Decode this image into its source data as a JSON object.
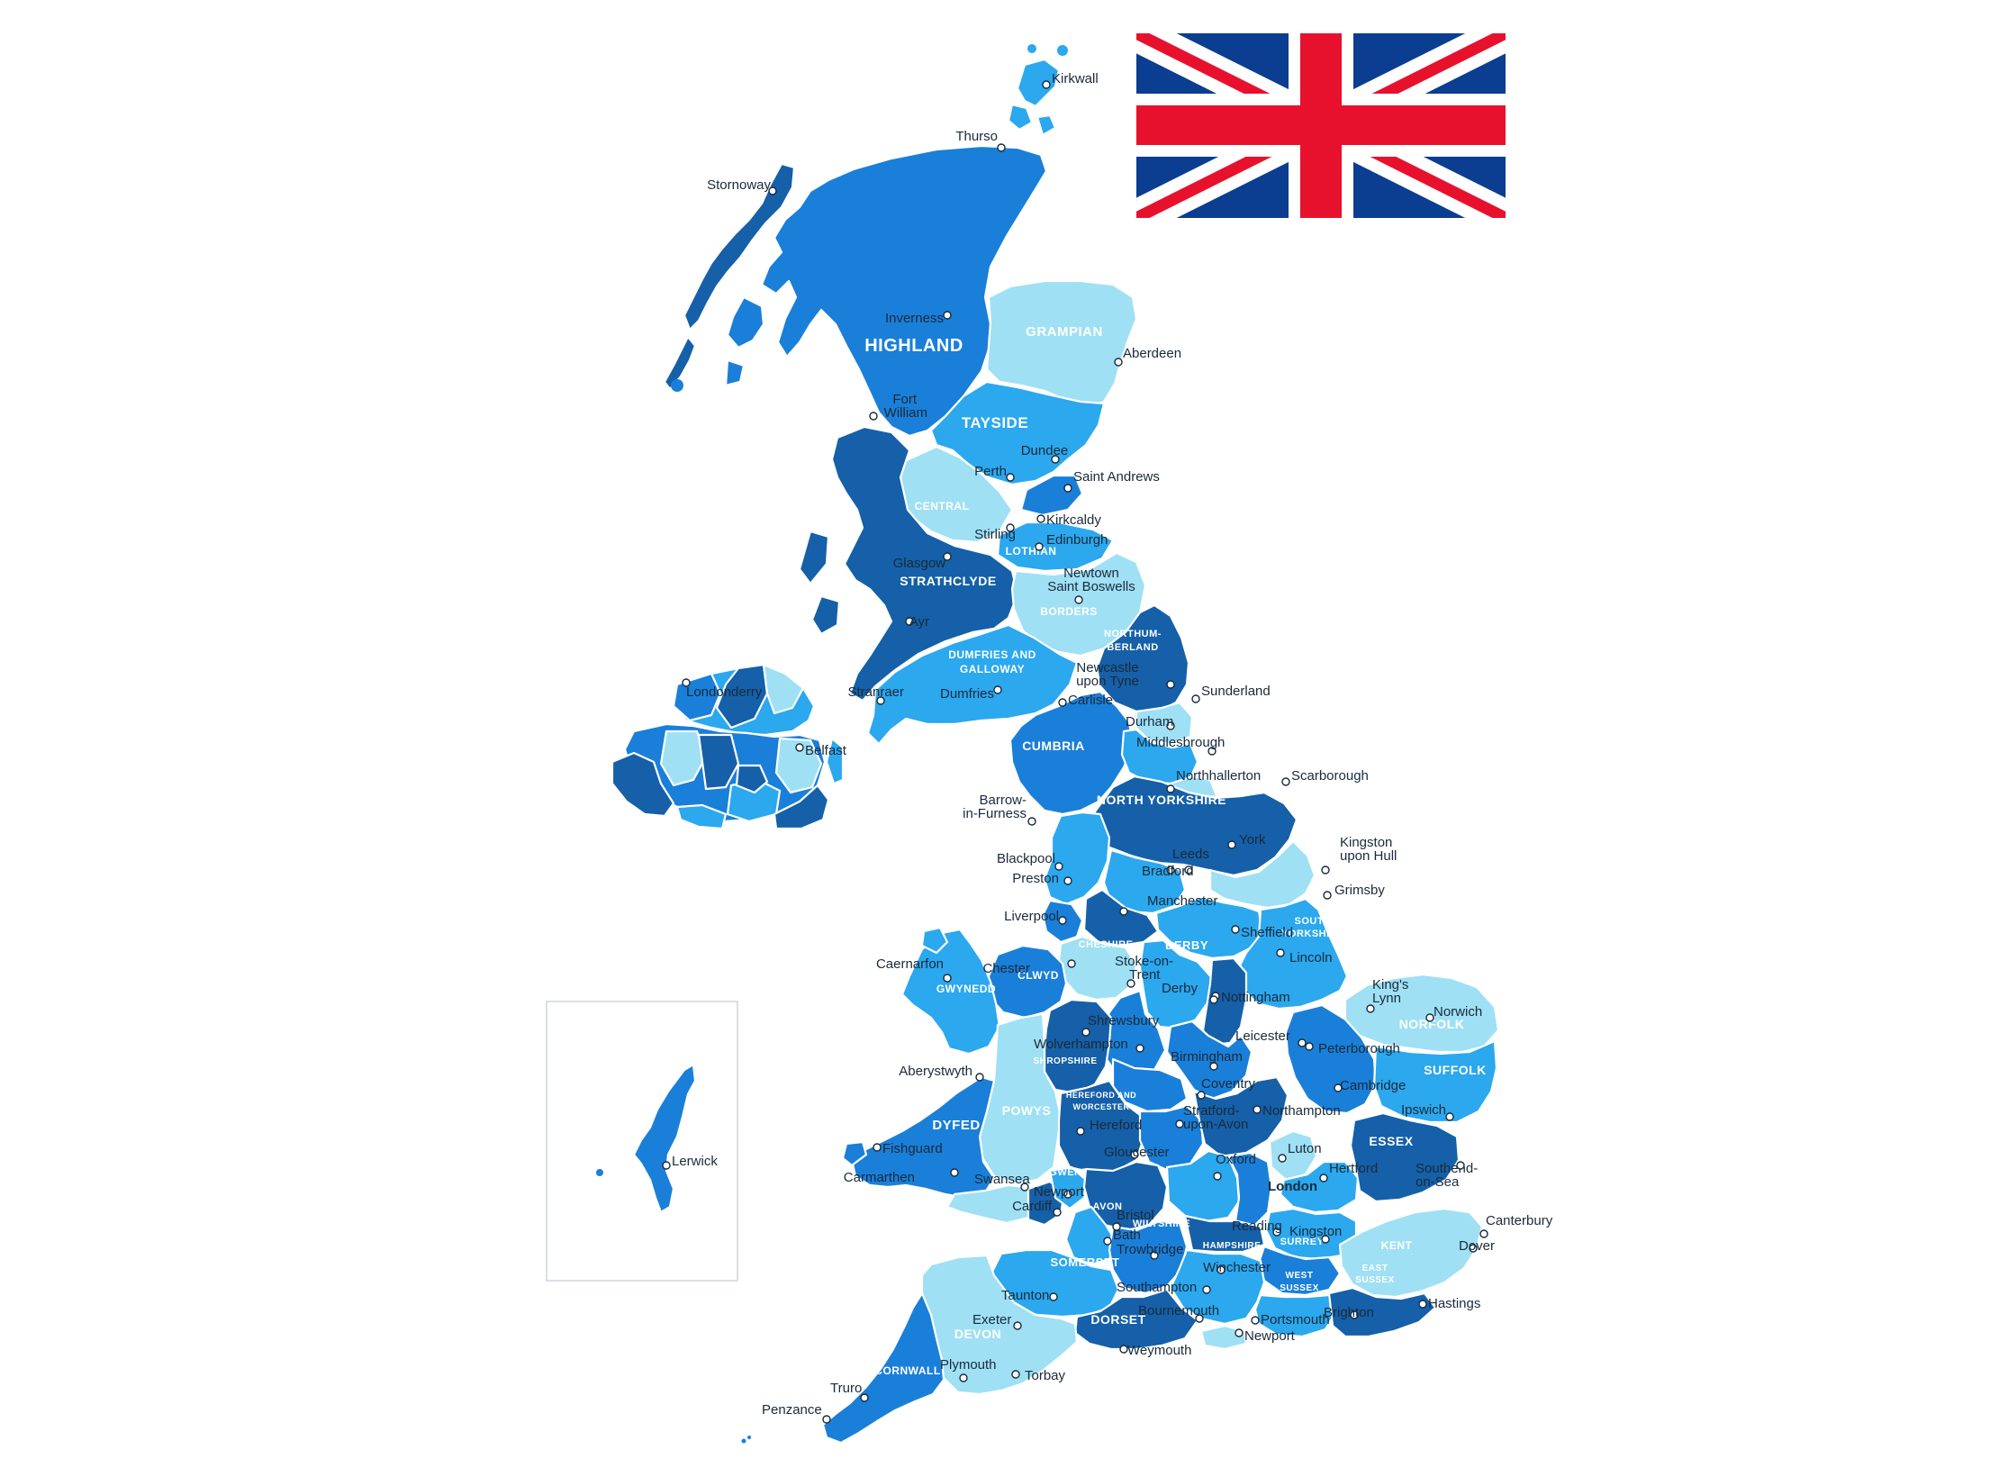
{
  "colors": {
    "darkest": "#1560a8",
    "dark": "#1a7fd8",
    "mid": "#2ba8ee",
    "light": "#9fe0f5",
    "flag_blue": "#0b3d91",
    "flag_red": "#e8112d",
    "flag_white": "#ffffff"
  },
  "flag": {
    "name": "Union Jack",
    "icon": "union-jack-flag-icon"
  },
  "regions": [
    {
      "label": "HIGHLAND",
      "size": 20
    },
    {
      "label": "GRAMPIAN",
      "size": 15
    },
    {
      "label": "TAYSIDE",
      "size": 17
    },
    {
      "label": "CENTRAL",
      "size": 12
    },
    {
      "label": "LOTHIAN",
      "size": 12
    },
    {
      "label": "STRATHCLYDE",
      "size": 14
    },
    {
      "label": "BORDERS",
      "size": 12
    },
    {
      "label": "DUMFRIES AND",
      "size": 12
    },
    {
      "label": "GALLOWAY",
      "size": 12
    },
    {
      "label": "NORTHUM-",
      "size": 11
    },
    {
      "label": "BERLAND",
      "size": 11
    },
    {
      "label": "CUMBRIA",
      "size": 14
    },
    {
      "label": "NORTH YORKSHIRE",
      "size": 14
    },
    {
      "label": "SOUTH",
      "size": 11
    },
    {
      "label": "YORKSHIRE",
      "size": 11
    },
    {
      "label": "CHESHIRE",
      "size": 11
    },
    {
      "label": "DERBY",
      "size": 13
    },
    {
      "label": "GWYNEDD",
      "size": 12
    },
    {
      "label": "CLWYD",
      "size": 12
    },
    {
      "label": "SHROPSHIRE",
      "size": 10
    },
    {
      "label": "NORFOLK",
      "size": 14
    },
    {
      "label": "SUFFOLK",
      "size": 14
    },
    {
      "label": "POWYS",
      "size": 14
    },
    {
      "label": "HEREFORD AND",
      "size": 9
    },
    {
      "label": "WORCESTER",
      "size": 9
    },
    {
      "label": "DYFED",
      "size": 15
    },
    {
      "label": "GWENT",
      "size": 11
    },
    {
      "label": "ESSEX",
      "size": 14
    },
    {
      "label": "AVON",
      "size": 11
    },
    {
      "label": "WILTSHIRE",
      "size": 11
    },
    {
      "label": "HAMPSHIRE",
      "size": 10
    },
    {
      "label": "SURREY",
      "size": 11
    },
    {
      "label": "KENT",
      "size": 12
    },
    {
      "label": "SOMERSET",
      "size": 13
    },
    {
      "label": "WEST",
      "size": 10
    },
    {
      "label": "SUSSEX",
      "size": 10
    },
    {
      "label": "EAST",
      "size": 10
    },
    {
      "label": "SUSSEX",
      "size": 10
    },
    {
      "label": "DEVON",
      "size": 14
    },
    {
      "label": "DORSET",
      "size": 14
    },
    {
      "label": "CORNWALL",
      "size": 12
    }
  ],
  "cities": [
    {
      "name": "Kirkwall"
    },
    {
      "name": "Thurso"
    },
    {
      "name": "Stornoway"
    },
    {
      "name": "Inverness"
    },
    {
      "name": "Aberdeen"
    },
    {
      "name": "Fort"
    },
    {
      "name": "William"
    },
    {
      "name": "Dundee"
    },
    {
      "name": "Perth"
    },
    {
      "name": "Saint Andrews"
    },
    {
      "name": "Kirkcaldy"
    },
    {
      "name": "Stirling"
    },
    {
      "name": "Edinburgh"
    },
    {
      "name": "Glasgow"
    },
    {
      "name": "Newtown"
    },
    {
      "name": "Saint Boswells"
    },
    {
      "name": "Ayr"
    },
    {
      "name": "Stranraer"
    },
    {
      "name": "Dumfries"
    },
    {
      "name": "Carlisle"
    },
    {
      "name": "Newcastle"
    },
    {
      "name": "upon Tyne"
    },
    {
      "name": "Sunderland"
    },
    {
      "name": "Durham"
    },
    {
      "name": "Middlesbrough"
    },
    {
      "name": "Londonderry"
    },
    {
      "name": "Belfast"
    },
    {
      "name": "Northhallerton"
    },
    {
      "name": "Scarborough"
    },
    {
      "name": "Barrow-"
    },
    {
      "name": "in-Furness"
    },
    {
      "name": "Kingston"
    },
    {
      "name": "upon Hull"
    },
    {
      "name": "York"
    },
    {
      "name": "Leeds"
    },
    {
      "name": "Bradford"
    },
    {
      "name": "Blackpool"
    },
    {
      "name": "Preston"
    },
    {
      "name": "Grimsby"
    },
    {
      "name": "Manchester"
    },
    {
      "name": "Liverpool"
    },
    {
      "name": "Sheffield"
    },
    {
      "name": "Lincoln"
    },
    {
      "name": "Caernarfon"
    },
    {
      "name": "Chester"
    },
    {
      "name": "Stoke-on-"
    },
    {
      "name": "Trent"
    },
    {
      "name": "Derby"
    },
    {
      "name": "Nottingham"
    },
    {
      "name": "King's"
    },
    {
      "name": "Lynn"
    },
    {
      "name": "Norwich"
    },
    {
      "name": "Shrewsbury"
    },
    {
      "name": "Wolverhampton"
    },
    {
      "name": "Leicester"
    },
    {
      "name": "Peterborough"
    },
    {
      "name": "Birmingham"
    },
    {
      "name": "Aberystwyth"
    },
    {
      "name": "Coventry"
    },
    {
      "name": "Cambridge"
    },
    {
      "name": "Lerwick"
    },
    {
      "name": "Northampton"
    },
    {
      "name": "Ipswich"
    },
    {
      "name": "Hereford"
    },
    {
      "name": "Stratford-"
    },
    {
      "name": "upon-Avon"
    },
    {
      "name": "Fishguard"
    },
    {
      "name": "Gloucester"
    },
    {
      "name": "Luton"
    },
    {
      "name": "Oxford"
    },
    {
      "name": "Southend-"
    },
    {
      "name": "on-Sea"
    },
    {
      "name": "Carmarthen"
    },
    {
      "name": "Swansea"
    },
    {
      "name": "Newport"
    },
    {
      "name": "Hertford"
    },
    {
      "name": "London"
    },
    {
      "name": "Cardiff"
    },
    {
      "name": "Bristol"
    },
    {
      "name": "Reading"
    },
    {
      "name": "Canterbury"
    },
    {
      "name": "Bath"
    },
    {
      "name": "Kingston"
    },
    {
      "name": "Dover"
    },
    {
      "name": "Trowbridge"
    },
    {
      "name": "Winchester"
    },
    {
      "name": "Taunton"
    },
    {
      "name": "Southampton"
    },
    {
      "name": "Hastings"
    },
    {
      "name": "Brighton"
    },
    {
      "name": "Exeter"
    },
    {
      "name": "Bournemouth"
    },
    {
      "name": "Portsmouth"
    },
    {
      "name": "Newport"
    },
    {
      "name": "Weymouth"
    },
    {
      "name": "Plymouth"
    },
    {
      "name": "Torbay"
    },
    {
      "name": "Truro"
    },
    {
      "name": "Penzance"
    }
  ]
}
